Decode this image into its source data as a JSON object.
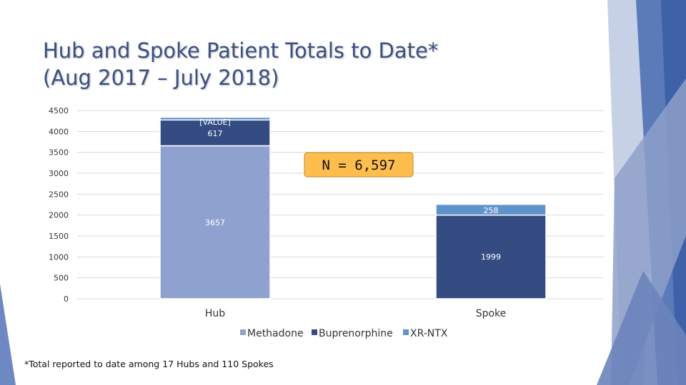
{
  "title_line1": "Hub and Spoke Patient Totals to Date*",
  "title_line2": "(Aug 2017 – July 2018)",
  "footnote": "*Total reported to date among 17 Hubs and 110 Spokes",
  "callout": "N = 6,597",
  "colors": {
    "Methadone": "#8fa2cf",
    "Buprenorphine": "#344c82",
    "XR-NTX": "#5f93cc",
    "callout_fill": "#fdbe4e",
    "title": "#3a4f86"
  },
  "chart_data": {
    "type": "bar",
    "stacked": true,
    "title": "Hub and Spoke Patient Totals to Date* (Aug 2017 – July 2018)",
    "categories": [
      "Hub",
      "Spoke"
    ],
    "series": [
      {
        "name": "Methadone",
        "values": [
          3657,
          0
        ],
        "labels": [
          "3657",
          ""
        ]
      },
      {
        "name": "Buprenorphine",
        "values": [
          617,
          1999
        ],
        "labels": [
          "[VALUE]\n617",
          "1999"
        ]
      },
      {
        "name": "XR-NTX",
        "values": [
          65,
          258
        ],
        "labels": [
          "",
          "258"
        ]
      }
    ],
    "ylim": [
      0,
      4500
    ],
    "yticks": [
      0,
      500,
      1000,
      1500,
      2000,
      2500,
      3000,
      3500,
      4000,
      4500
    ],
    "xlabel": "",
    "ylabel": "",
    "grid": true,
    "legend": "bottom"
  }
}
